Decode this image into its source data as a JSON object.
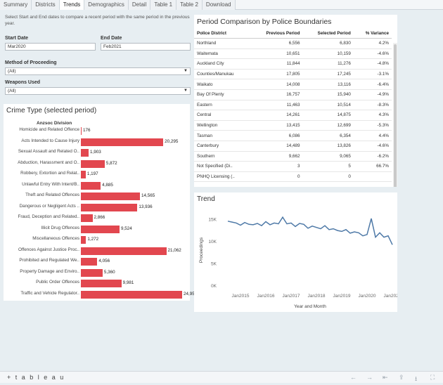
{
  "tabs": [
    "Summary",
    "Districts",
    "Trends",
    "Demographics",
    "Detail",
    "Table 1",
    "Table 2",
    "Download"
  ],
  "active_tab": "Trends",
  "intro_text": "Select Start and End dates to compare a recent period with the same period in the previous year.",
  "filters": {
    "start_label": "Start Date",
    "start_value": "Mar2020",
    "end_label": "End Date",
    "end_value": "Feb2021",
    "method_label": "Method of Proceeding",
    "method_value": "(All)",
    "weapons_label": "Weapons Used",
    "weapons_value": "(All)"
  },
  "crime_panel": {
    "title": "Crime Type (selected period)",
    "header": "Anzsoc Division",
    "items": [
      {
        "label": "Homicide and Related Offence",
        "value": 176,
        "display": "176"
      },
      {
        "label": "Acts Intended to Cause Injury",
        "value": 20295,
        "display": "20,295"
      },
      {
        "label": "Sexual Assault and Related O..",
        "value": 1903,
        "display": "1,903"
      },
      {
        "label": "Abduction, Harassment and O..",
        "value": 5872,
        "display": "5,872"
      },
      {
        "label": "Robbery, Extortion and Relat..",
        "value": 1197,
        "display": "1,197"
      },
      {
        "label": "Unlawful Entry With Intent/B..",
        "value": 4885,
        "display": "4,885"
      },
      {
        "label": "Theft and Related Offences",
        "value": 14565,
        "display": "14,565"
      },
      {
        "label": "Dangerous or Negligent Acts ..",
        "value": 13936,
        "display": "13,936"
      },
      {
        "label": "Fraud, Deception and Related..",
        "value": 2866,
        "display": "2,866"
      },
      {
        "label": "Illicit Drug Offences",
        "value": 9524,
        "display": "9,524"
      },
      {
        "label": "Miscellaneous Offences",
        "value": 1272,
        "display": "1,272"
      },
      {
        "label": "Offences Against Justice Proc..",
        "value": 21062,
        "display": "21,062"
      },
      {
        "label": "Prohibited and Regulated We..",
        "value": 4056,
        "display": "4,056"
      },
      {
        "label": "Property Damage and Enviro..",
        "value": 5360,
        "display": "5,360"
      },
      {
        "label": "Public Order Offences",
        "value": 9981,
        "display": "9,981"
      },
      {
        "label": "Traffic and Vehicle Regulator..",
        "value": 24954,
        "display": "24,954"
      }
    ]
  },
  "period_panel": {
    "title": "Period Comparison by Police Boundaries",
    "columns": [
      "Police District",
      "Previous Period",
      "Selected Period",
      "% Variance"
    ],
    "rows": [
      [
        "Northland",
        "6,556",
        "6,830",
        "4.2%"
      ],
      [
        "Waitemata",
        "10,651",
        "10,159",
        "-4.6%"
      ],
      [
        "Auckland City",
        "11,844",
        "11,276",
        "-4.8%"
      ],
      [
        "Counties/Manukau",
        "17,805",
        "17,245",
        "-3.1%"
      ],
      [
        "Waikato",
        "14,008",
        "13,116",
        "-6.4%"
      ],
      [
        "Bay Of Plenty",
        "16,757",
        "15,940",
        "-4.9%"
      ],
      [
        "Eastern",
        "11,463",
        "10,514",
        "-8.3%"
      ],
      [
        "Central",
        "14,261",
        "14,875",
        "4.3%"
      ],
      [
        "Wellington",
        "13,415",
        "12,699",
        "-5.3%"
      ],
      [
        "Tasman",
        "6,086",
        "6,354",
        "4.4%"
      ],
      [
        "Canterbury",
        "14,489",
        "13,826",
        "-4.6%"
      ],
      [
        "Southern",
        "9,662",
        "9,065",
        "-6.2%"
      ],
      [
        "Not Specified (Di..",
        "3",
        "5",
        "66.7%"
      ],
      [
        "PNHQ Licensing (..",
        "0",
        "0",
        ""
      ]
    ]
  },
  "trend_panel": {
    "title": "Trend",
    "ylabel": "Proceedings",
    "xlabel": "Year and Month"
  },
  "chart_data": {
    "type": "line",
    "title": "Trend",
    "xlabel": "Year and Month",
    "ylabel": "Proceedings",
    "x_ticks": [
      "Jan2015",
      "Jan2016",
      "Jan2017",
      "Jan2018",
      "Jan2019",
      "Jan2020",
      "Jan2021"
    ],
    "y_ticks": [
      "0K",
      "5K",
      "10K",
      "15K"
    ],
    "ylim": [
      0,
      16000
    ],
    "x": [
      "Jul2014",
      "Sep2014",
      "Nov2014",
      "Jan2015",
      "Mar2015",
      "May2015",
      "Jul2015",
      "Sep2015",
      "Nov2015",
      "Jan2016",
      "Mar2016",
      "May2016",
      "Jul2016",
      "Sep2016",
      "Nov2016",
      "Jan2017",
      "Mar2017",
      "May2017",
      "Jul2017",
      "Sep2017",
      "Nov2017",
      "Jan2018",
      "Mar2018",
      "May2018",
      "Jul2018",
      "Sep2018",
      "Nov2018",
      "Jan2019",
      "Mar2019",
      "May2019",
      "Jul2019",
      "Sep2019",
      "Nov2019",
      "Jan2020",
      "Mar2020",
      "May2020",
      "Jul2020",
      "Sep2020",
      "Nov2020",
      "Jan2021"
    ],
    "series": [
      {
        "values": [
          14600,
          14400,
          14200,
          13700,
          14300,
          13900,
          13800,
          14100,
          13600,
          14500,
          13800,
          14200,
          14000,
          15500,
          14000,
          14200,
          13400,
          14100,
          13900,
          13000,
          13500,
          13200,
          12900,
          13600,
          12700,
          12900,
          12500,
          12300,
          12700,
          11900,
          12200,
          12000,
          11300,
          11600,
          15200,
          11000,
          12000,
          11000,
          11300,
          9300
        ]
      }
    ]
  },
  "bottom": {
    "logo": "+ t a b l e a u"
  }
}
